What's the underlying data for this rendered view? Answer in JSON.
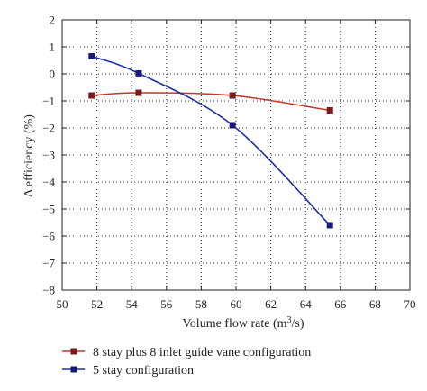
{
  "chart_data": {
    "type": "line",
    "xlabel": "Volume flow rate (m",
    "xlabel_sup": "3",
    "xlabel_suffix": "/s)",
    "ylabel": "Δ efficiency (%)",
    "xlim": [
      50,
      70
    ],
    "ylim": [
      -8,
      2
    ],
    "xticks": [
      "50",
      "52",
      "54",
      "56",
      "58",
      "60",
      "62",
      "64",
      "66",
      "68",
      "70"
    ],
    "yticks": [
      "2",
      "1",
      "0",
      "−1",
      "−2",
      "−3",
      "−4",
      "−5",
      "−6",
      "−7",
      "−8"
    ],
    "grid": "dotted",
    "legend_position": "bottom",
    "series": [
      {
        "name": "8 stay plus 8 inlet guide vane configuration",
        "color": "#c0392b",
        "marker_color": "#7a1a1a",
        "x": [
          51.7,
          54.4,
          59.8,
          65.4
        ],
        "y": [
          -0.8,
          -0.7,
          -0.8,
          -1.35
        ]
      },
      {
        "name": "5 stay configuration",
        "color": "#1f2fa8",
        "marker_color": "#1a1a7a",
        "x": [
          51.7,
          54.4,
          59.8,
          65.4
        ],
        "y": [
          0.65,
          0.02,
          -1.9,
          -5.6
        ]
      }
    ]
  }
}
